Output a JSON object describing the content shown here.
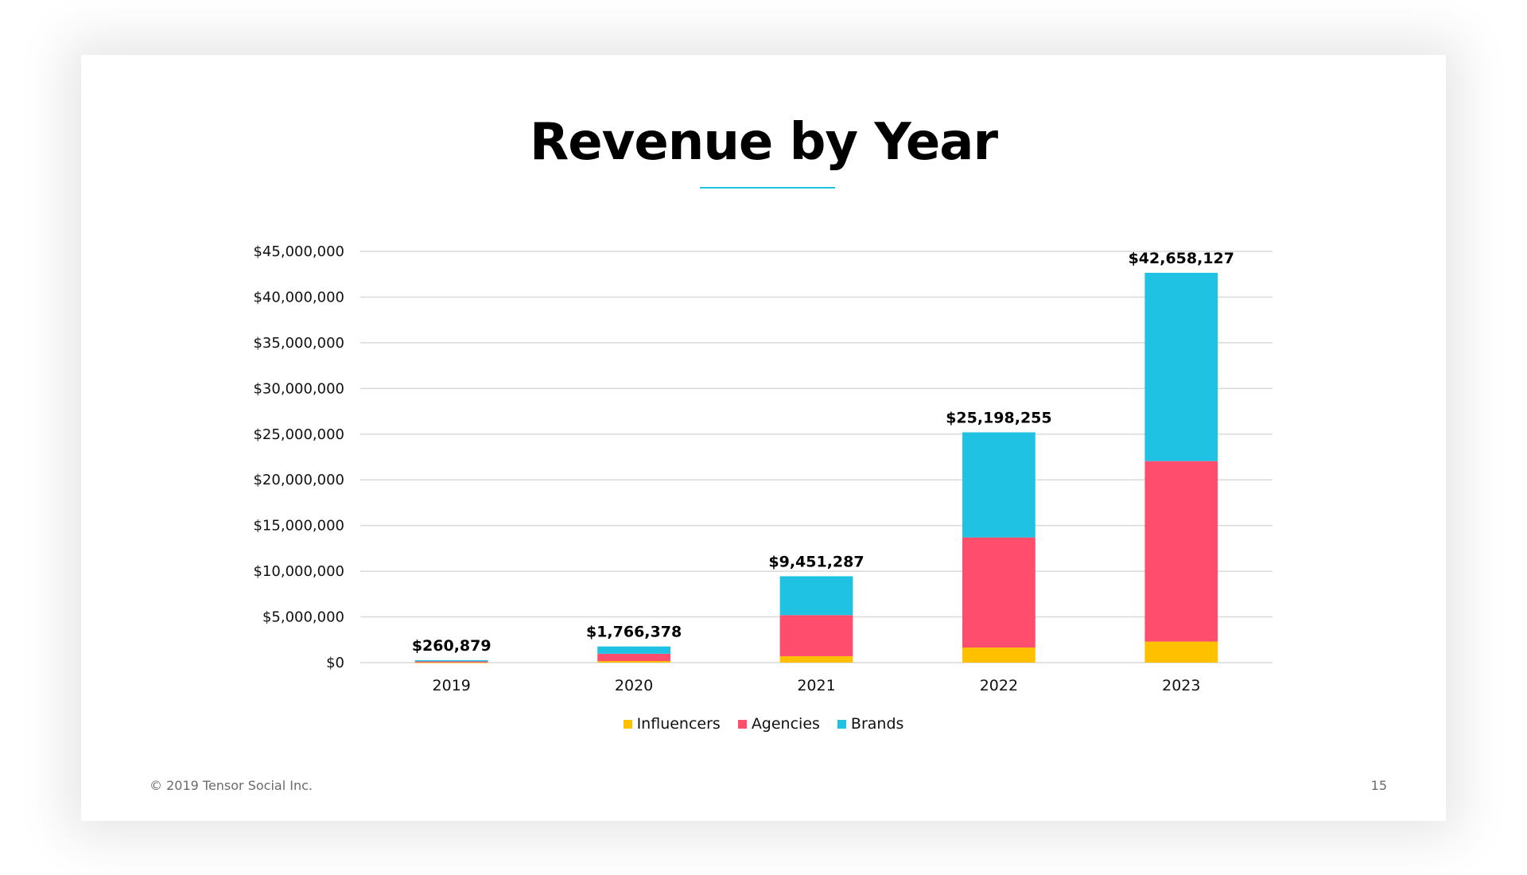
{
  "slide": {
    "title": "Revenue by Year",
    "accent_color": "#1FC2E3",
    "footer_copyright": "© 2019 Tensor Social Inc.",
    "page_number": "15"
  },
  "chart_data": {
    "type": "bar",
    "stacked": true,
    "title": "Revenue by Year",
    "xlabel": "",
    "ylabel": "",
    "categories": [
      "2019",
      "2020",
      "2021",
      "2022",
      "2023"
    ],
    "series": [
      {
        "name": "Influencers",
        "color": "#FFC000",
        "values": [
          20000,
          170000,
          700000,
          1650000,
          2300000
        ]
      },
      {
        "name": "Agencies",
        "color": "#FF4D6D",
        "values": [
          110000,
          800000,
          4500000,
          12050000,
          19750000
        ]
      },
      {
        "name": "Brands",
        "color": "#1FC2E3",
        "values": [
          130879,
          796378,
          4251287,
          11498255,
          20608127
        ]
      }
    ],
    "totals": [
      260879,
      1766378,
      9451287,
      25198255,
      42658127
    ],
    "total_labels": [
      "$260,879",
      "$1,766,378",
      "$9,451,287",
      "$25,198,255",
      "$42,658,127"
    ],
    "ylim": [
      0,
      45000000
    ],
    "yticks": [
      0,
      5000000,
      10000000,
      15000000,
      20000000,
      25000000,
      30000000,
      35000000,
      40000000,
      45000000
    ],
    "ytick_labels": [
      "$0",
      "$5,000,000",
      "$10,000,000",
      "$15,000,000",
      "$20,000,000",
      "$25,000,000",
      "$30,000,000",
      "$35,000,000",
      "$40,000,000",
      "$45,000,000"
    ],
    "grid": true,
    "legend_position": "bottom-center"
  }
}
